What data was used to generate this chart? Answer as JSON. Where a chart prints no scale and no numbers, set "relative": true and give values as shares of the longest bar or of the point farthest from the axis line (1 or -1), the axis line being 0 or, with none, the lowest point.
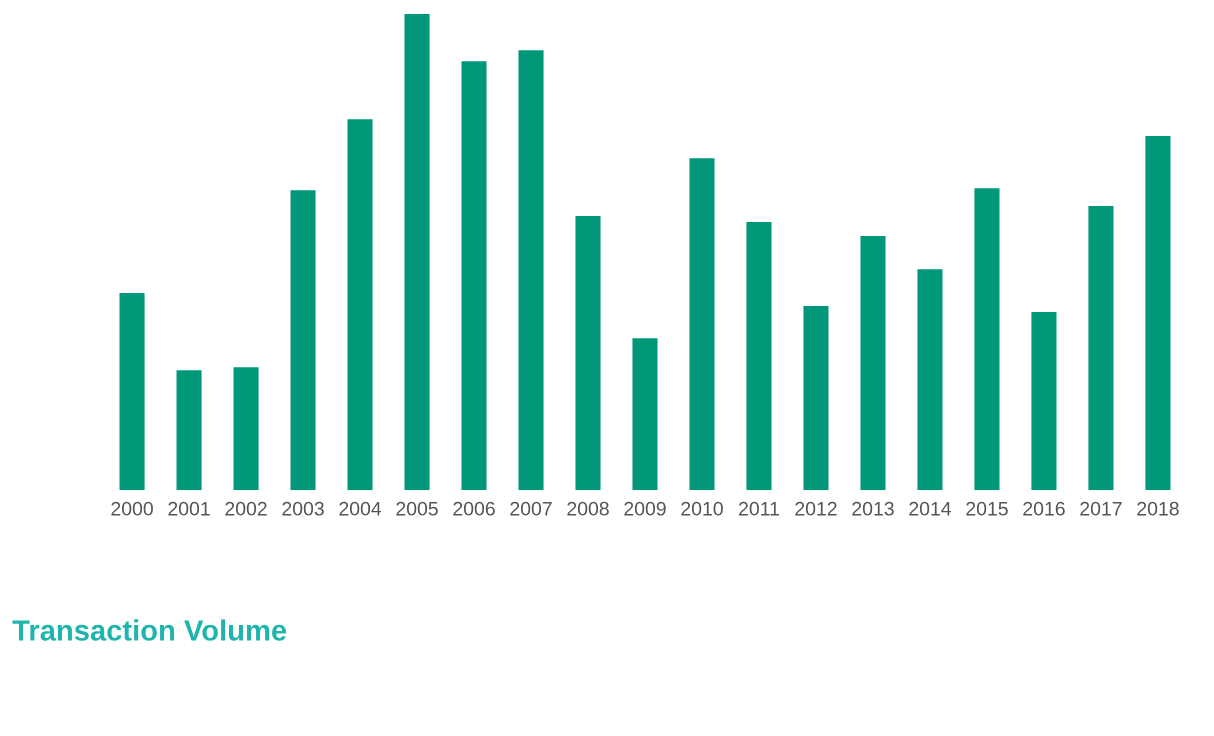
{
  "chart_data": {
    "type": "bar",
    "title": "Transaction Volume",
    "relative": true,
    "color": "#009879",
    "categories": [
      "2000",
      "2001",
      "2002",
      "2003",
      "2004",
      "2005",
      "2006",
      "2007",
      "2008",
      "2009",
      "2010",
      "2011",
      "2012",
      "2013",
      "2014",
      "2015",
      "2016",
      "2017",
      "2018"
    ],
    "values": [
      0.414,
      0.252,
      0.258,
      0.63,
      0.779,
      1,
      0.901,
      0.924,
      0.576,
      0.319,
      0.697,
      0.563,
      0.387,
      0.534,
      0.464,
      0.634,
      0.374,
      0.597,
      0.744
    ],
    "grid": false,
    "legend": false
  }
}
